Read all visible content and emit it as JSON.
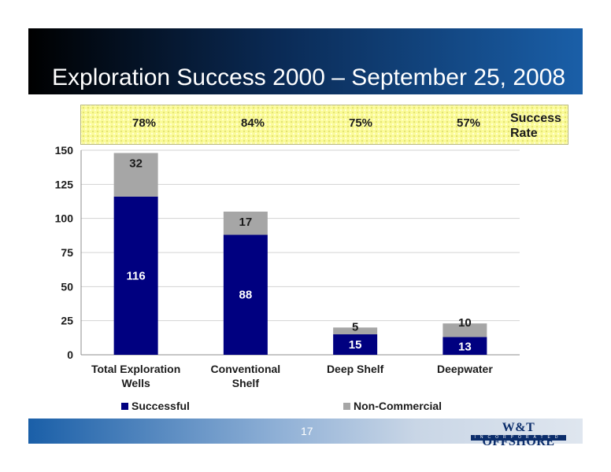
{
  "title": "Exploration Success 2000 – September 25, 2008",
  "success_rate": {
    "label_line1": "Success",
    "label_line2": "Rate",
    "values": [
      "78%",
      "84%",
      "75%",
      "57%"
    ]
  },
  "chart_data": {
    "type": "bar",
    "stacked": true,
    "categories": [
      [
        "Total Exploration",
        "Wells"
      ],
      [
        "Conventional",
        "Shelf"
      ],
      [
        "Deep Shelf"
      ],
      [
        "Deepwater"
      ]
    ],
    "series": [
      {
        "name": "Successful",
        "values": [
          116,
          88,
          15,
          13
        ],
        "color": "#000080"
      },
      {
        "name": "Non-Commercial",
        "values": [
          32,
          17,
          5,
          10
        ],
        "color": "#a6a6a6"
      }
    ],
    "ylim": [
      0,
      150
    ],
    "yticks": [
      0,
      25,
      50,
      75,
      100,
      125,
      150
    ],
    "grid": true,
    "legend": "bottom"
  },
  "footer": {
    "page_number": "17",
    "logo_main": "W&T OFFSHORE",
    "logo_sub": "INCORPORATED"
  }
}
